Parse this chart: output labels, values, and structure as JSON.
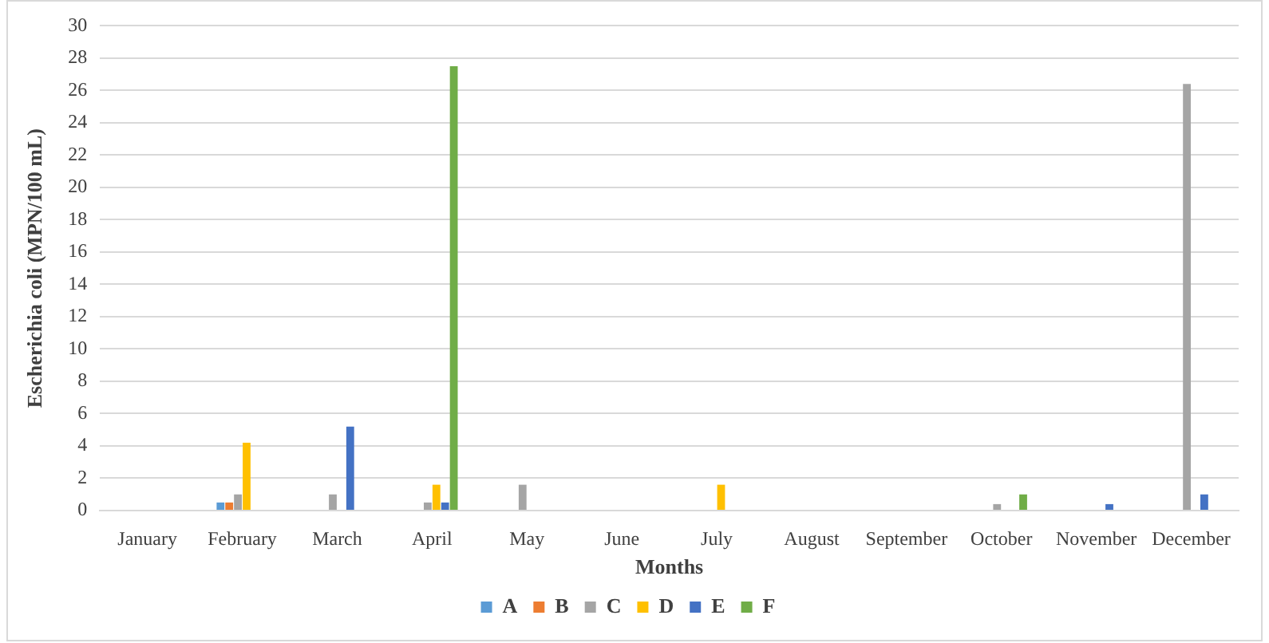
{
  "chart_data": {
    "type": "bar",
    "xlabel": "Months",
    "ylabel": "Escherichia coli (MPN/100 mL)",
    "categories": [
      "January",
      "February",
      "March",
      "April",
      "May",
      "June",
      "July",
      "August",
      "September",
      "October",
      "November",
      "December"
    ],
    "series": [
      {
        "name": "A",
        "color": "#5b9bd5",
        "values": [
          null,
          0.5,
          null,
          null,
          null,
          null,
          null,
          null,
          null,
          null,
          null,
          null
        ]
      },
      {
        "name": "B",
        "color": "#ed7d31",
        "values": [
          null,
          0.5,
          null,
          null,
          null,
          null,
          null,
          null,
          null,
          null,
          null,
          null
        ]
      },
      {
        "name": "C",
        "color": "#a5a5a5",
        "values": [
          null,
          1,
          1,
          0.5,
          1.6,
          null,
          null,
          null,
          null,
          0.4,
          null,
          26.4
        ]
      },
      {
        "name": "D",
        "color": "#ffc000",
        "values": [
          null,
          4.2,
          null,
          1.6,
          null,
          null,
          1.6,
          null,
          null,
          null,
          null,
          null
        ]
      },
      {
        "name": "E",
        "color": "#4472c4",
        "values": [
          null,
          null,
          5.2,
          0.5,
          null,
          null,
          null,
          null,
          null,
          null,
          0.4,
          1
        ]
      },
      {
        "name": "F",
        "color": "#70ad47",
        "values": [
          null,
          null,
          null,
          27.5,
          null,
          null,
          null,
          null,
          null,
          1,
          null,
          null
        ]
      }
    ],
    "ylim": [
      0,
      30
    ],
    "yticks": [
      0,
      2,
      4,
      6,
      8,
      10,
      12,
      14,
      16,
      18,
      20,
      22,
      24,
      26,
      28,
      30
    ],
    "grid": "y",
    "legend": "bottom"
  }
}
